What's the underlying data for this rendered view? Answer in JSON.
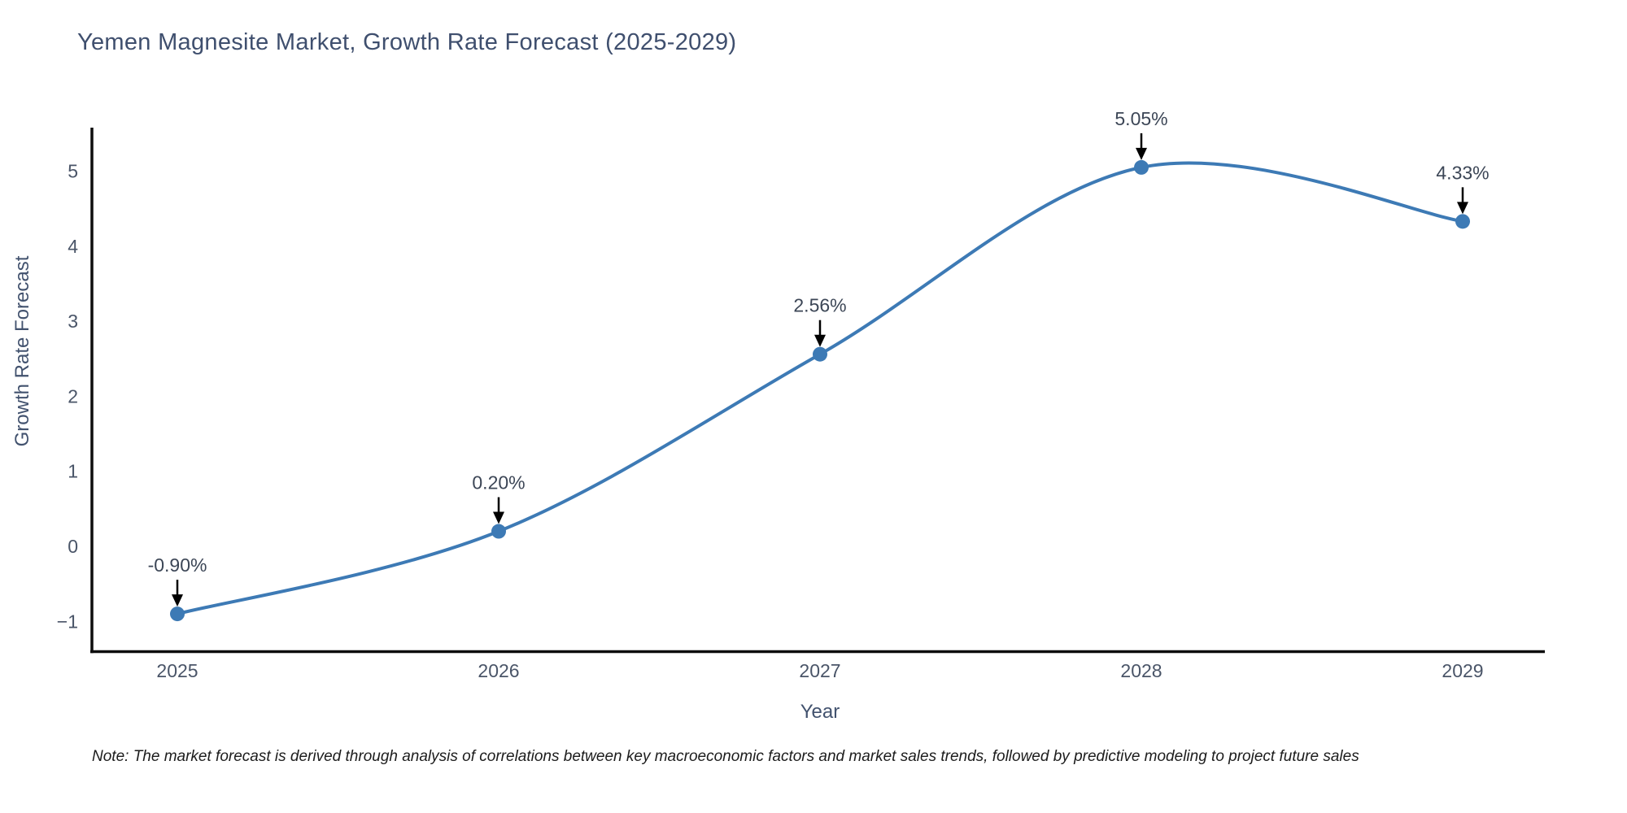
{
  "title": "Yemen Magnesite Market, Growth Rate Forecast (2025-2029)",
  "note": "Note: The market forecast is derived through analysis of correlations between key macroeconomic factors and market sales trends, followed by predictive modeling to project future sales",
  "chart_data": {
    "type": "line",
    "curve": "spline",
    "title": "Yemen Magnesite Market, Growth Rate Forecast (2025-2029)",
    "xlabel": "Year",
    "ylabel": "Growth Rate Forecast",
    "x": [
      2025,
      2026,
      2027,
      2028,
      2029
    ],
    "values": [
      -0.9,
      0.2,
      2.56,
      5.05,
      4.33
    ],
    "point_labels": [
      "-0.90%",
      "0.20%",
      "2.56%",
      "5.05%",
      "4.33%"
    ],
    "xtick_labels": [
      "2025",
      "2026",
      "2027",
      "2028",
      "2029"
    ],
    "yticks": [
      5,
      4,
      3,
      2,
      1,
      0,
      -1
    ],
    "ytick_labels": [
      "5",
      "4",
      "3",
      "2",
      "1",
      "0",
      "−1"
    ],
    "ylim": [
      -1.4,
      5.55
    ],
    "grid": false,
    "legend": "none",
    "line_color": "#3d7ab5",
    "marker_color": "#3d7ab5",
    "axis_color": "#0d0d0d",
    "annotation_arrow_color": "#000000"
  }
}
